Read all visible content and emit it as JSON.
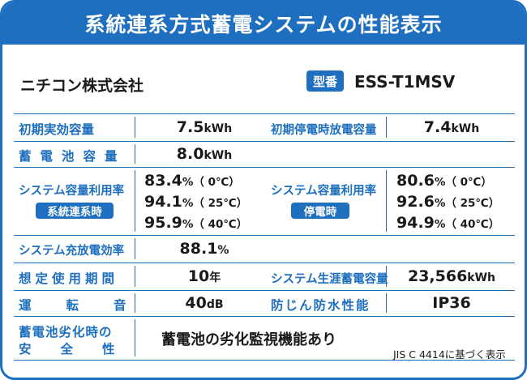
{
  "title": "系統連系方式蓄電システムの性能表示",
  "company": "ニチコン株式会社",
  "model": {
    "badge": "型番",
    "value": "ESS-T1MSV"
  },
  "specs": {
    "initial_capacity": {
      "label": "初期実効容量",
      "value": "7.5",
      "unit": "kWh"
    },
    "initial_outage_capacity": {
      "label": "初期停電時放電容量",
      "value": "7.4",
      "unit": "kWh"
    },
    "battery_capacity": {
      "label": "蓄電池容量",
      "value": "8.0",
      "unit": "kWh"
    },
    "utilization_grid": {
      "label": "システム容量利用率",
      "badge": "系統連系時",
      "rows": [
        {
          "value": "83.4",
          "unit": "%",
          "temp": "（ 0℃）"
        },
        {
          "value": "94.1",
          "unit": "%",
          "temp": "（ 25℃）"
        },
        {
          "value": "95.9",
          "unit": "%",
          "temp": "（ 40℃）"
        }
      ]
    },
    "utilization_outage": {
      "label": "システム容量利用率",
      "badge": "停電時",
      "rows": [
        {
          "value": "80.6",
          "unit": "%",
          "temp": "（ 0℃）"
        },
        {
          "value": "92.6",
          "unit": "%",
          "temp": "（ 25℃）"
        },
        {
          "value": "94.9",
          "unit": "%",
          "temp": "（ 40℃）"
        }
      ]
    },
    "charge_efficiency": {
      "label": "システム充放電効率",
      "value": "88.1",
      "unit": "%"
    },
    "expected_life": {
      "label": "想定使用期間",
      "value": "10",
      "unit": "年"
    },
    "lifetime_storage": {
      "label": "システム生涯蓄電容量",
      "value": "23,566",
      "unit": "kWh"
    },
    "noise": {
      "label": "運転音",
      "value": "40",
      "unit": "dB"
    },
    "water_proof": {
      "label": "防じん防水性能",
      "value": "IP36"
    },
    "degradation_safety": {
      "label_line1": "蓄電池劣化時の",
      "label_line2": "安全性",
      "value": "蓄電池の劣化監視機能あり"
    }
  },
  "footnote": "JIS C 4414に基づく表示"
}
